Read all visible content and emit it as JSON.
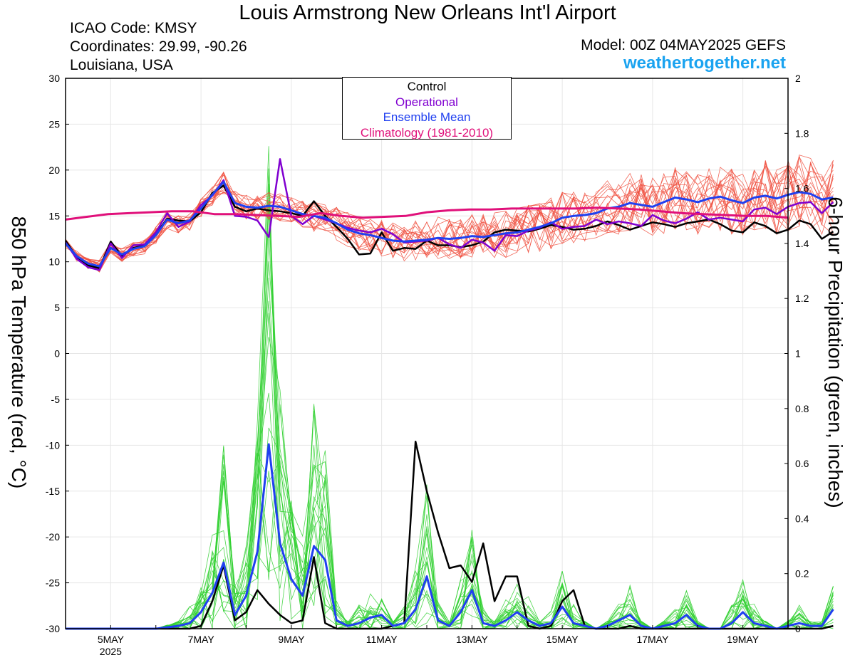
{
  "header": {
    "title": "Louis Armstrong New Orleans Int'l Airport",
    "icao": "ICAO Code: KMSY",
    "coordinates": "Coordinates: 29.99, -90.26",
    "region": "Louisiana, USA",
    "model": "Model: 00Z 04MAY2025 GEFS",
    "site": "weathertogether.net"
  },
  "legend": [
    {
      "label": "Control",
      "color": "#000000"
    },
    {
      "label": "Operational",
      "color": "#8000d0"
    },
    {
      "label": "Ensemble Mean",
      "color": "#2040f0"
    },
    {
      "label": "Climatology (1981-2010)",
      "color": "#e0107a"
    }
  ],
  "chart_data": {
    "type": "line",
    "ylabel": "850 hPa Temperature (red, °C)",
    "y2label": "6-hour Precipitation (green, inches)",
    "ylim": [
      -30,
      30
    ],
    "y2lim": [
      0,
      2
    ],
    "yticks": [
      "30",
      "25",
      "20",
      "15",
      "10",
      "5",
      "0",
      "-5",
      "-10",
      "-15",
      "-20",
      "-25",
      "-30"
    ],
    "y2ticks": [
      "2",
      "1.8",
      "1.6",
      "1.4",
      "1.2",
      "1",
      "0.8",
      "0.6",
      "0.4",
      "0.2",
      "0"
    ],
    "x_start_day": 4.0,
    "x_end_day": 20.0,
    "x_step_hours": 6,
    "xticks": [
      {
        "day": 5,
        "label": "5MAY",
        "sub": "2025"
      },
      {
        "day": 7,
        "label": "7MAY"
      },
      {
        "day": 9,
        "label": "9MAY"
      },
      {
        "day": 11,
        "label": "11MAY"
      },
      {
        "day": 13,
        "label": "13MAY"
      },
      {
        "day": 15,
        "label": "15MAY"
      },
      {
        "day": 17,
        "label": "17MAY"
      },
      {
        "day": 19,
        "label": "19MAY"
      }
    ],
    "grid": true,
    "colors": {
      "members_temp": "#f05040",
      "members_precip": "#30d030",
      "control": "#000000",
      "operational": "#8000d0",
      "mean": "#2040f0",
      "climatology": "#e0107a"
    },
    "series": [
      {
        "name": "Control",
        "axis": "temp",
        "values": [
          12.3,
          10.5,
          9.6,
          9.3,
          12.2,
          10.6,
          11.5,
          11.8,
          13.0,
          14.7,
          14.5,
          14.4,
          15.4,
          17.5,
          18.3,
          16.0,
          15.5,
          15.8,
          15.6,
          15.5,
          15.3,
          15.0,
          16.6,
          15.0,
          13.8,
          12.5,
          10.8,
          10.9,
          13.2,
          11.2,
          11.5,
          11.4,
          12.3,
          11.8,
          11.8,
          11.6,
          11.8,
          12.2,
          13.2,
          13.5,
          13.4,
          13.3,
          13.6,
          14.0,
          13.8,
          13.5,
          13.6,
          13.9,
          14.4,
          14.0,
          13.5,
          13.9,
          14.3,
          14.1,
          13.8,
          14.2,
          14.4,
          14.6,
          14.1,
          13.4,
          13.2,
          14.3,
          13.9,
          13.1,
          13.5,
          14.5,
          14.1,
          12.5,
          13.3
        ]
      },
      {
        "name": "Operational",
        "axis": "temp",
        "values": [
          12.1,
          10.3,
          9.4,
          9.1,
          12.0,
          10.4,
          11.8,
          11.9,
          13.2,
          15.3,
          13.8,
          14.4,
          16.2,
          17.2,
          18.9,
          15.0,
          14.9,
          14.5,
          12.7,
          21.2,
          15.0,
          14.1,
          15.0,
          14.6,
          14.2,
          13.7,
          13.4,
          13.2,
          13.6,
          13.0,
          12.1,
          12.2,
          12.3,
          12.6,
          11.9,
          11.5,
          12.4,
          12.1,
          11.2,
          12.9,
          12.8,
          13.4,
          13.7,
          14.3,
          13.6,
          13.8,
          13.9,
          14.6,
          14.1,
          14.4,
          14.2,
          13.9,
          15.1,
          14.5,
          14.2,
          14.7,
          15.4,
          14.6,
          14.8,
          14.6,
          14.4,
          15.7,
          15.9,
          15.2,
          16.0,
          16.4,
          16.5,
          15.3,
          16.5
        ]
      },
      {
        "name": "Ensemble Mean",
        "axis": "temp",
        "values": [
          12.0,
          10.6,
          9.8,
          9.5,
          11.5,
          10.8,
          11.4,
          11.7,
          12.9,
          14.6,
          14.2,
          14.5,
          15.8,
          17.3,
          18.7,
          16.4,
          16.0,
          15.9,
          16.1,
          16.0,
          15.6,
          15.2,
          15.0,
          14.8,
          14.2,
          13.5,
          13.1,
          12.9,
          12.6,
          12.3,
          12.2,
          12.3,
          12.4,
          12.6,
          12.5,
          12.6,
          12.8,
          12.7,
          12.9,
          13.1,
          13.2,
          13.5,
          13.8,
          14.2,
          14.8,
          15.0,
          15.1,
          15.3,
          15.8,
          16.0,
          16.4,
          16.2,
          16.0,
          16.5,
          17.0,
          16.8,
          16.5,
          16.9,
          17.1,
          16.7,
          16.4,
          17.0,
          17.2,
          16.9,
          17.3,
          17.6,
          17.4,
          16.8,
          17.0
        ]
      },
      {
        "name": "Climatology (1981-2010)",
        "axis": "temp",
        "values": [
          14.6,
          14.9,
          15.2,
          15.3,
          15.4,
          15.5,
          15.5,
          15.2,
          15.2,
          15.1,
          15.0,
          14.9,
          15.3,
          15.0,
          14.8,
          14.9,
          15.0,
          15.4,
          15.6,
          15.7,
          15.7,
          15.8,
          15.8,
          15.8,
          15.8,
          15.9,
          15.8,
          15.7,
          15.5,
          15.3,
          15.2,
          15.1,
          15.0,
          15.0,
          14.8
        ]
      },
      {
        "name": "Control",
        "axis": "precip",
        "values": [
          0,
          0,
          0,
          0,
          0,
          0,
          0,
          0,
          0,
          0,
          0,
          0,
          0.01,
          0.1,
          0.23,
          0.03,
          0.06,
          0.14,
          0.09,
          0.05,
          0.02,
          0.03,
          0.26,
          0.02,
          0,
          0,
          0,
          0,
          0,
          0.01,
          0.02,
          0.68,
          0.5,
          0.35,
          0.22,
          0.23,
          0.17,
          0.31,
          0.1,
          0.19,
          0.19,
          0.01,
          0,
          0.01,
          0.1,
          0.14,
          0.01,
          0,
          0,
          0,
          0.01,
          0,
          0,
          0,
          0,
          0,
          0,
          0,
          0,
          0,
          0,
          0,
          0,
          0,
          0,
          0,
          0,
          0,
          0.01
        ]
      },
      {
        "name": "Ensemble Mean",
        "axis": "precip",
        "values": [
          0,
          0,
          0,
          0,
          0,
          0,
          0,
          0,
          0,
          0.005,
          0.01,
          0.02,
          0.06,
          0.13,
          0.24,
          0.05,
          0.12,
          0.28,
          0.67,
          0.31,
          0.18,
          0.12,
          0.3,
          0.25,
          0.03,
          0.01,
          0.02,
          0.04,
          0.05,
          0.01,
          0.02,
          0.07,
          0.19,
          0.03,
          0.01,
          0.06,
          0.14,
          0.02,
          0.01,
          0.03,
          0.06,
          0.03,
          0.01,
          0.02,
          0.08,
          0.02,
          0.01,
          0,
          0.01,
          0.03,
          0.05,
          0.01,
          0,
          0.01,
          0.02,
          0.05,
          0.01,
          0,
          0,
          0.02,
          0.06,
          0.02,
          0.01,
          0,
          0.01,
          0.02,
          0.01,
          0.01,
          0.07
        ]
      }
    ]
  }
}
